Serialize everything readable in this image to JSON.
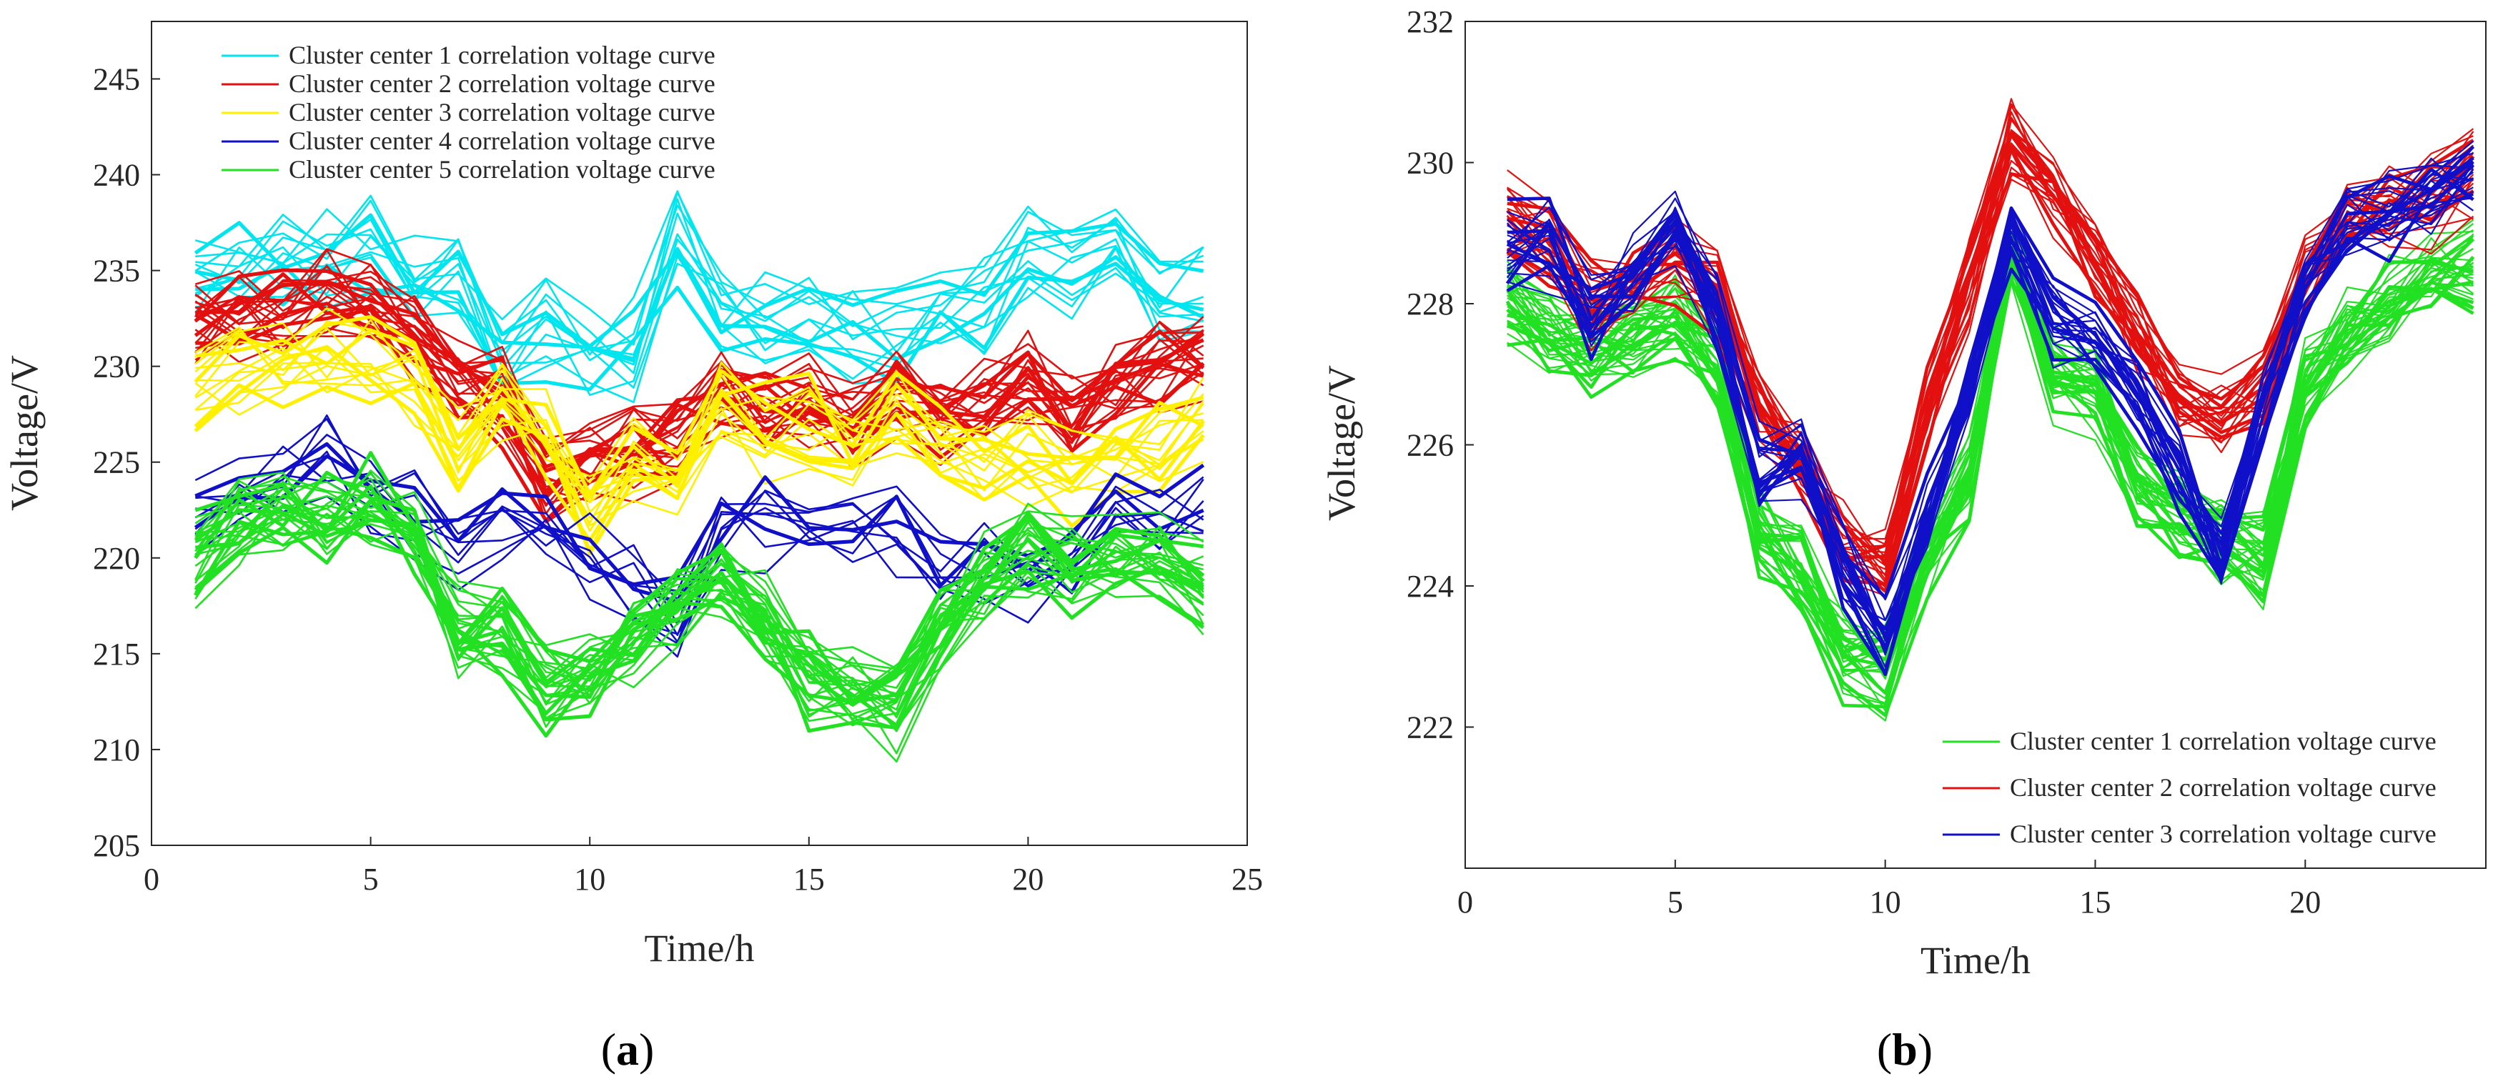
{
  "chart_data": [
    {
      "type": "line",
      "caption": "a",
      "xlabel": "Time/h",
      "ylabel": "Voltage/V",
      "xlim": [
        0,
        25
      ],
      "ylim": [
        205,
        248
      ],
      "xticks": [
        0,
        5,
        10,
        15,
        20,
        25
      ],
      "yticks": [
        205,
        210,
        215,
        220,
        225,
        230,
        235,
        240,
        245
      ],
      "legend_position": "top-left",
      "x": [
        1,
        2,
        3,
        4,
        5,
        6,
        7,
        8,
        9,
        10,
        11,
        12,
        13,
        14,
        15,
        16,
        17,
        18,
        19,
        20,
        21,
        22,
        23,
        24
      ],
      "series": [
        {
          "name": "Cluster center 1 correlation voltage curve",
          "color": "#00E5EE",
          "curve_count": 14,
          "values": [
            234.5,
            235.5,
            235.5,
            235.5,
            236.2,
            234.5,
            235.0,
            231.0,
            232.0,
            230.5,
            230.8,
            236.5,
            233.0,
            232.8,
            232.5,
            232.0,
            231.8,
            232.5,
            233.5,
            236.0,
            235.0,
            236.5,
            233.5,
            233.5
          ]
        },
        {
          "name": "Cluster center 2 correlation voltage curve",
          "color": "#E31010",
          "curve_count": 24,
          "values": [
            232.0,
            232.8,
            233.0,
            233.5,
            233.0,
            231.5,
            229.0,
            228.5,
            224.0,
            225.0,
            225.5,
            226.0,
            228.5,
            228.0,
            228.2,
            226.5,
            228.5,
            227.0,
            228.0,
            229.5,
            227.5,
            229.0,
            230.0,
            230.5
          ]
        },
        {
          "name": "Cluster center 3 correlation voltage curve",
          "color": "#FFF000",
          "curve_count": 16,
          "values": [
            229.0,
            230.0,
            230.2,
            230.5,
            230.5,
            229.5,
            226.0,
            228.5,
            226.5,
            222.5,
            225.0,
            224.0,
            228.5,
            226.5,
            227.0,
            225.5,
            227.5,
            226.0,
            225.0,
            225.5,
            224.5,
            225.5,
            226.0,
            227.5
          ]
        },
        {
          "name": "Cluster center 4 correlation voltage curve",
          "color": "#1010C8",
          "curve_count": 10,
          "values": [
            222.0,
            223.5,
            224.0,
            224.8,
            223.5,
            222.5,
            221.0,
            222.5,
            221.5,
            220.0,
            218.5,
            217.0,
            222.0,
            222.0,
            221.0,
            221.5,
            221.5,
            219.0,
            220.0,
            218.5,
            219.5,
            223.0,
            221.5,
            222.5
          ]
        },
        {
          "name": "Cluster center 5 correlation voltage curve",
          "color": "#22E022",
          "curve_count": 28,
          "values": [
            220.0,
            222.0,
            222.5,
            222.0,
            223.0,
            221.0,
            216.0,
            216.0,
            213.0,
            213.5,
            215.5,
            217.5,
            219.0,
            216.5,
            213.5,
            213.0,
            212.0,
            216.5,
            218.5,
            220.5,
            219.5,
            220.0,
            219.5,
            218.5
          ]
        }
      ]
    },
    {
      "type": "line",
      "caption": "b",
      "xlabel": "Time/h",
      "ylabel": "Voltage/V",
      "xlim": [
        0,
        24.3
      ],
      "ylim": [
        220,
        232
      ],
      "xticks": [
        0,
        5,
        10,
        15,
        20
      ],
      "yticks": [
        222,
        224,
        226,
        228,
        230,
        232
      ],
      "legend_position": "bottom-right",
      "x": [
        1,
        2,
        3,
        4,
        5,
        6,
        7,
        8,
        9,
        10,
        11,
        12,
        13,
        14,
        15,
        16,
        17,
        18,
        19,
        20,
        21,
        22,
        23,
        24
      ],
      "series": [
        {
          "name": "Cluster center 1 correlation voltage curve",
          "color": "#22E022",
          "curve_count": 34,
          "values": [
            228.0,
            227.6,
            227.3,
            227.6,
            227.8,
            227.2,
            224.8,
            224.2,
            223.0,
            222.8,
            224.5,
            225.6,
            228.7,
            227.0,
            226.8,
            225.5,
            225.0,
            224.6,
            224.4,
            226.8,
            227.6,
            228.0,
            228.4,
            228.5
          ]
        },
        {
          "name": "Cluster center 2 correlation voltage curve",
          "color": "#E31010",
          "curve_count": 24,
          "values": [
            229.2,
            228.9,
            228.0,
            228.3,
            228.6,
            228.2,
            226.6,
            225.8,
            224.6,
            224.4,
            226.5,
            228.3,
            230.4,
            229.6,
            228.7,
            227.6,
            226.6,
            226.4,
            226.8,
            228.4,
            229.2,
            229.4,
            229.4,
            229.8
          ]
        },
        {
          "name": "Cluster center 3 correlation voltage curve",
          "color": "#1010C8",
          "curve_count": 24,
          "values": [
            228.8,
            228.8,
            227.8,
            228.5,
            229.1,
            227.8,
            225.6,
            225.8,
            224.2,
            223.2,
            225.0,
            226.8,
            229.0,
            227.8,
            227.6,
            226.7,
            225.6,
            224.4,
            226.5,
            228.2,
            229.1,
            229.2,
            229.6,
            229.8
          ]
        }
      ]
    }
  ]
}
